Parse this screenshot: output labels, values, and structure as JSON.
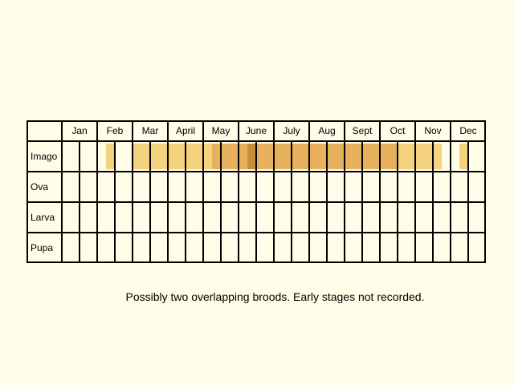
{
  "months": [
    "Jan",
    "Feb",
    "Mar",
    "April",
    "May",
    "June",
    "July",
    "Aug",
    "Sept",
    "Oct",
    "Nov",
    "Dec"
  ],
  "stages": [
    "Imago",
    "Ova",
    "Larva",
    "Pupa"
  ],
  "note": "Possibly two overlapping broods. Early stages not recorded.",
  "chart_data": {
    "type": "heatmap",
    "periods_per_month": 4,
    "row_labels": [
      "Imago",
      "Ova",
      "Larva",
      "Pupa"
    ],
    "column_labels": [
      "Jan",
      "Feb",
      "Mar",
      "April",
      "May",
      "June",
      "July",
      "Aug",
      "Sept",
      "Oct",
      "Nov",
      "Dec"
    ],
    "values": [
      [
        0,
        0,
        0,
        0,
        0,
        1,
        0,
        0,
        1,
        1,
        1,
        1,
        1,
        1,
        1,
        1,
        1,
        2,
        2,
        2,
        2,
        3,
        2,
        2,
        2,
        2,
        2,
        2,
        2,
        2,
        2,
        2,
        2,
        2,
        2,
        2,
        2,
        2,
        1,
        1,
        1,
        1,
        1,
        0,
        0,
        1,
        0,
        0
      ],
      [
        0,
        0,
        0,
        0,
        0,
        0,
        0,
        0,
        0,
        0,
        0,
        0,
        0,
        0,
        0,
        0,
        0,
        0,
        0,
        0,
        0,
        0,
        0,
        0,
        0,
        0,
        0,
        0,
        0,
        0,
        0,
        0,
        0,
        0,
        0,
        0,
        0,
        0,
        0,
        0,
        0,
        0,
        0,
        0,
        0,
        0,
        0,
        0
      ],
      [
        0,
        0,
        0,
        0,
        0,
        0,
        0,
        0,
        0,
        0,
        0,
        0,
        0,
        0,
        0,
        0,
        0,
        0,
        0,
        0,
        0,
        0,
        0,
        0,
        0,
        0,
        0,
        0,
        0,
        0,
        0,
        0,
        0,
        0,
        0,
        0,
        0,
        0,
        0,
        0,
        0,
        0,
        0,
        0,
        0,
        0,
        0,
        0
      ],
      [
        0,
        0,
        0,
        0,
        0,
        0,
        0,
        0,
        0,
        0,
        0,
        0,
        0,
        0,
        0,
        0,
        0,
        0,
        0,
        0,
        0,
        0,
        0,
        0,
        0,
        0,
        0,
        0,
        0,
        0,
        0,
        0,
        0,
        0,
        0,
        0,
        0,
        0,
        0,
        0,
        0,
        0,
        0,
        0,
        0,
        0,
        0,
        0
      ]
    ],
    "colors": [
      "none",
      "#f5d27e",
      "#e6b05c",
      "#c98e3a"
    ],
    "background": "#fffde8",
    "grid": true
  }
}
